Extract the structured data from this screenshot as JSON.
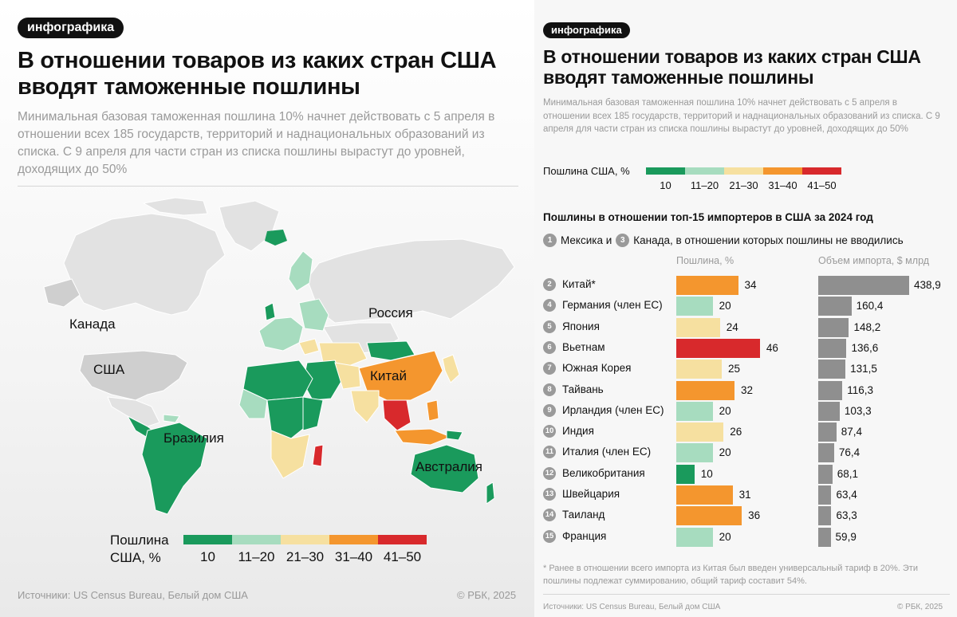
{
  "left": {
    "badge": "инфографика",
    "title": "В отношении товаров из каких стран США вводят таможенные пошлины",
    "subtitle": "Минимальная базовая таможенная пошлина 10% начнет действовать с 5 апреля в отношении всех 185 государств, территорий и наднациональных образований из списка. С 9 апреля для части стран из списка пошлины вырастут до уровней, доходящих до 50%",
    "map_labels": {
      "canada": "Канада",
      "usa": "США",
      "russia": "Россия",
      "china": "Китай",
      "brazil": "Бразилия",
      "australia": "Австралия"
    },
    "legend_title_line1": "Пошлина",
    "legend_title_line2": "США, %",
    "sources": "Источники: US Census Bureau, Белый дом США",
    "copyright": "© РБК, 2025"
  },
  "right": {
    "badge": "инфографика",
    "title": "В отношении товаров из каких стран США вводят таможенные пошлины",
    "subtitle": "Минимальная базовая таможенная пошлина 10% начнет действовать с 5 апреля в отношении всех 185 государств, территорий и наднациональных образований из списка. С 9 апреля для части стран из списка пошлины вырастут до уровней, доходящих до 50%",
    "legend_title": "Пошлина США, %",
    "section_title": "Пошлины в отношении топ-15 импортеров в США за 2024 год",
    "note_num1": "1",
    "note_part1": "Мексика и",
    "note_num2": "3",
    "note_part2": "Канада, в отношении которых пошлины не вводились",
    "col_tariff": "Пошлина, %",
    "col_import": "Объем импорта, $ млрд",
    "footnote": "* Ранее в отношении всего импорта из Китая был введен универсальный тариф в 20%. Эти пошлины подлежат суммированию, общий тариф составит 54%.",
    "sources": "Источники: US Census Bureau, Белый дом США",
    "copyright": "© РБК, 2025"
  },
  "legend": {
    "categories": [
      "10",
      "11–20",
      "21–30",
      "31–40",
      "41–50"
    ],
    "colors": [
      "#1a9a5c",
      "#a7dcbf",
      "#f6e0a0",
      "#f4962e",
      "#d8292c"
    ]
  },
  "colors": {
    "gray_bar": "#8f8f8f",
    "land_gray": "#e2e2e2",
    "usa_gray": "#cfcfcf"
  },
  "chart_data": {
    "type": "bar",
    "title": "Пошлины в отношении топ-15 импортеров в США за 2024 год",
    "ranks": [
      "2",
      "4",
      "5",
      "6",
      "7",
      "8",
      "9",
      "10",
      "11",
      "12",
      "13",
      "14",
      "15"
    ],
    "categories": [
      "Китай*",
      "Германия (член ЕС)",
      "Япония",
      "Вьетнам",
      "Южная Корея",
      "Тайвань",
      "Ирландия (член ЕС)",
      "Индия",
      "Италия (член ЕС)",
      "Великобритания",
      "Швейцария",
      "Таиланд",
      "Франция"
    ],
    "series": [
      {
        "name": "Пошлина, %",
        "values": [
          34,
          20,
          24,
          46,
          25,
          32,
          20,
          26,
          20,
          10,
          31,
          36,
          20
        ],
        "labels": [
          "34",
          "20",
          "24",
          "46",
          "25",
          "32",
          "20",
          "26",
          "20",
          "10",
          "31",
          "36",
          "20"
        ]
      },
      {
        "name": "Объем импорта, $ млрд",
        "values": [
          438.9,
          160.4,
          148.2,
          136.6,
          131.5,
          116.3,
          103.3,
          87.4,
          76.4,
          68.1,
          63.4,
          63.3,
          59.9
        ],
        "labels": [
          "438,9",
          "160,4",
          "148,2",
          "136,6",
          "131,5",
          "116,3",
          "103,3",
          "87,4",
          "76,4",
          "68,1",
          "63,4",
          "63,3",
          "59,9"
        ]
      }
    ],
    "tariff_max": 50,
    "import_max": 438.9
  }
}
